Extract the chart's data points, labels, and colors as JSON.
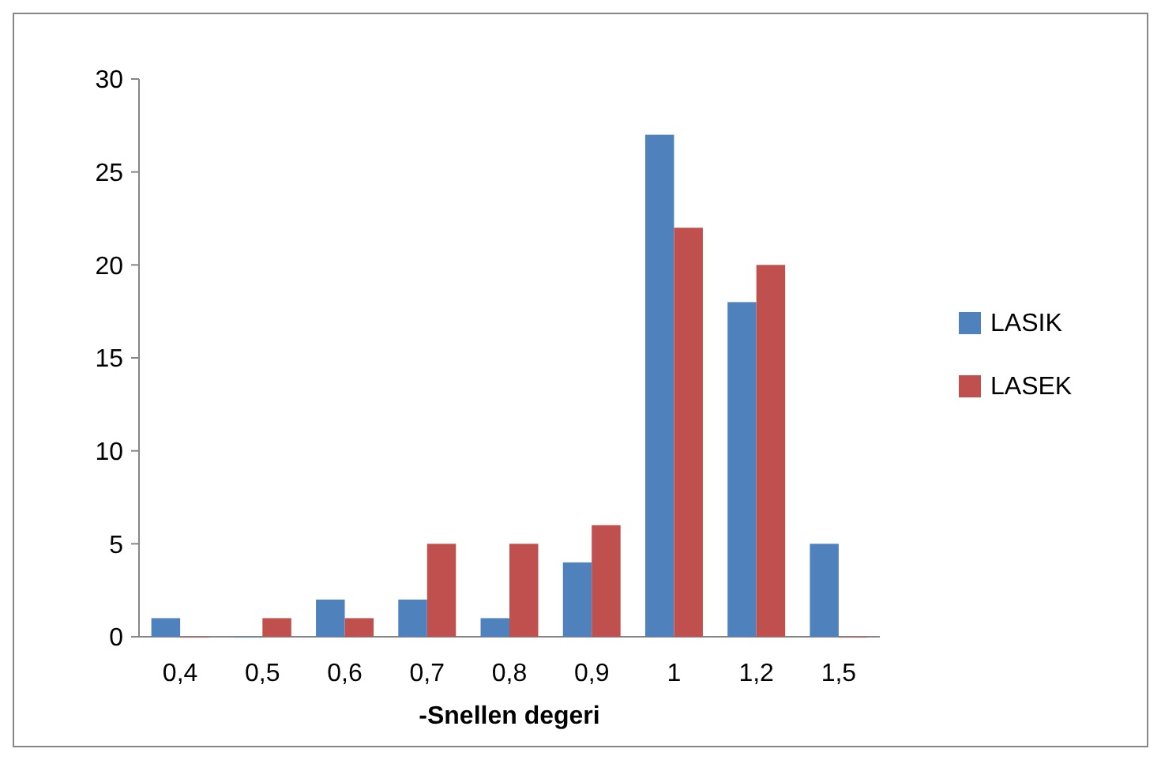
{
  "chart_data": {
    "type": "bar",
    "xlabel": "-Snellen degeri",
    "categories": [
      "0,4",
      "0,5",
      "0,6",
      "0,7",
      "0,8",
      "0,9",
      "1",
      "1,2",
      "1,5"
    ],
    "series": [
      {
        "name": "LASIK",
        "color": "#4f81bd",
        "values": [
          1,
          0,
          2,
          2,
          1,
          4,
          27,
          18,
          5
        ]
      },
      {
        "name": "LASEK",
        "color": "#c0504d",
        "values": [
          0,
          1,
          1,
          5,
          5,
          6,
          22,
          20,
          0
        ]
      }
    ],
    "ylim": [
      0,
      30
    ],
    "yticks": [
      0,
      5,
      10,
      15,
      20,
      25,
      30
    ],
    "grid": false,
    "legend": "right"
  }
}
